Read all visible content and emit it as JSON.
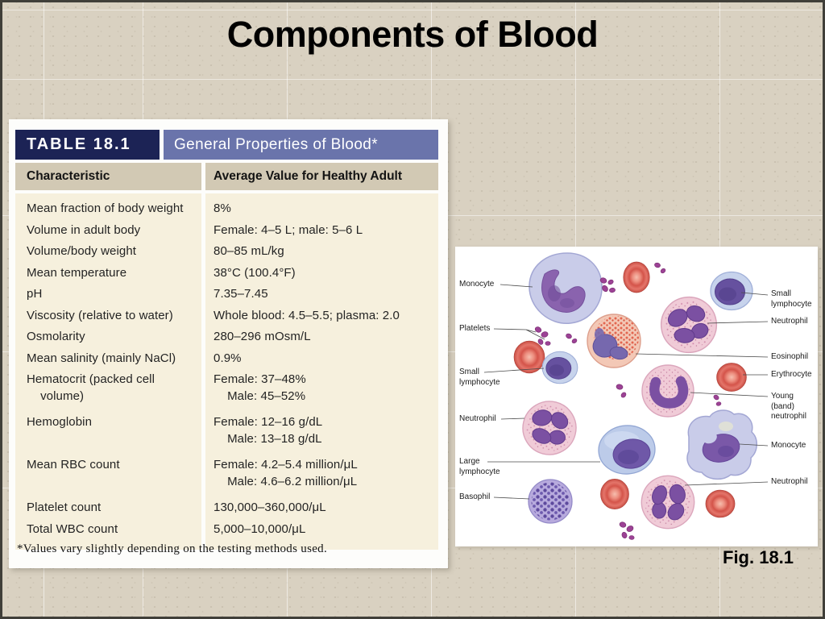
{
  "title": "Components of Blood",
  "table": {
    "label": "TABLE 18.1",
    "title": "General Properties of Blood*",
    "columns": [
      "Characteristic",
      "Average Value for Healthy Adult"
    ],
    "rows": [
      {
        "c": "Mean fraction of body weight",
        "v": "8%"
      },
      {
        "c": "Volume in adult body",
        "v": "Female: 4–5 L; male: 5–6 L"
      },
      {
        "c": "Volume/body weight",
        "v": "80–85 mL/kg"
      },
      {
        "c": "Mean temperature",
        "v": "38°C (100.4°F)"
      },
      {
        "c": "pH",
        "v": "7.35–7.45"
      },
      {
        "c": "Viscosity (relative to water)",
        "v": "Whole blood: 4.5–5.5; plasma: 2.0"
      },
      {
        "c": "Osmolarity",
        "v": "280–296 mOsm/L"
      },
      {
        "c": "Mean salinity (mainly NaCl)",
        "v": "0.9%"
      },
      {
        "c": "Hematocrit (packed cell\n    volume)",
        "v": "Female: 37–48%\n    Male: 45–52%"
      },
      {
        "c": "Hemoglobin",
        "v": "Female: 12–16 g/dL\n    Male: 13–18 g/dL"
      },
      {
        "c": "Mean RBC count",
        "v": "Female: 4.2–5.4 million/μL\n    Male: 4.6–6.2 million/μL"
      },
      {
        "c": "Platelet count",
        "v": "130,000–360,000/μL"
      },
      {
        "c": "Total WBC count",
        "v": "5,000–10,000/μL"
      }
    ],
    "footnote": "*Values vary slightly depending on the testing methods used."
  },
  "figure": {
    "caption": "Fig. 18.1",
    "labels": [
      {
        "id": "monocyte-left",
        "text": "Monocyte"
      },
      {
        "id": "platelets",
        "text": "Platelets"
      },
      {
        "id": "small-lymphocyte-left",
        "text": "Small\nlymphocyte"
      },
      {
        "id": "neutrophil-left",
        "text": "Neutrophil"
      },
      {
        "id": "large-lymphocyte",
        "text": "Large\nlymphocyte"
      },
      {
        "id": "basophil",
        "text": "Basophil"
      },
      {
        "id": "small-lymphocyte-right",
        "text": "Small\nlymphocyte"
      },
      {
        "id": "neutrophil-right-top",
        "text": "Neutrophil"
      },
      {
        "id": "eosinophil",
        "text": "Eosinophil"
      },
      {
        "id": "erythrocyte",
        "text": "Erythrocyte"
      },
      {
        "id": "young-band-neutrophil",
        "text": "Young (band)\nneutrophil"
      },
      {
        "id": "monocyte-right",
        "text": "Monocyte"
      },
      {
        "id": "neutrophil-right-bottom",
        "text": "Neutrophil"
      }
    ]
  },
  "colors": {
    "slide_background": "#d9d1c1",
    "table_header_navy": "#1c2355",
    "table_header_periwinkle": "#6a74ab",
    "column_header_tan": "#d2c9b4",
    "table_body_cream": "#f6f0dd",
    "title_text": "#000000"
  }
}
